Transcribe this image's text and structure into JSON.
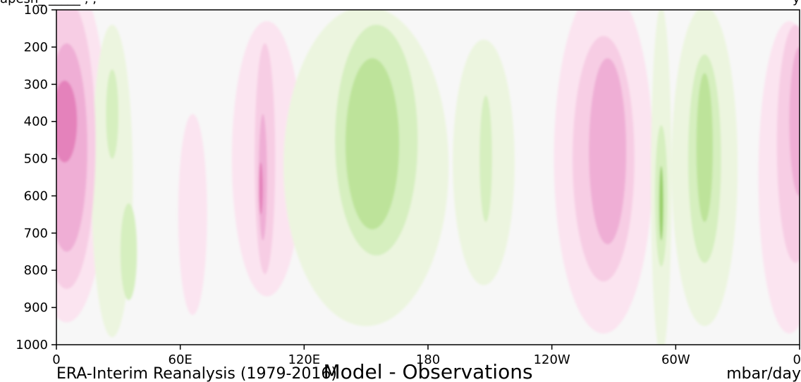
{
  "chart_data": {
    "type": "heatmap",
    "top_label_left": "apesh_   _____ ,   ,",
    "top_label_right": "y",
    "footer_left": "ERA-Interim Reanalysis (1979-2016)",
    "footer_center": "Model - Observations",
    "footer_right": "mbar/day",
    "y_ticks": [
      "100",
      "200",
      "300",
      "400",
      "500",
      "600",
      "700",
      "800",
      "900",
      "1000"
    ],
    "y_tick_values": [
      100,
      200,
      300,
      400,
      500,
      600,
      700,
      800,
      900,
      1000
    ],
    "ylim": [
      1000,
      100
    ],
    "x_ticks": [
      "0",
      "60E",
      "120E",
      "180",
      "120W",
      "60W",
      "0"
    ],
    "x_tick_values": [
      0,
      60,
      120,
      180,
      240,
      300,
      360
    ],
    "xlim": [
      0,
      360
    ],
    "colors": {
      "background": "#f7f7f7",
      "pink_levels": [
        "#fbe4f0",
        "#f7cde4",
        "#efaed5",
        "#e482bb",
        "#cf4c98"
      ],
      "green_levels": [
        "#ecf5df",
        "#d6efbf",
        "#bde39a",
        "#98cf68",
        "#68ad38"
      ]
    },
    "anomalies": [
      {
        "lon": 5,
        "lon_half_width": 20,
        "p_center": 470,
        "p_half_height": 470,
        "sign": 1,
        "level": 1
      },
      {
        "lon": 5,
        "lon_half_width": 14,
        "p_center": 460,
        "p_half_height": 390,
        "sign": 1,
        "level": 2
      },
      {
        "lon": 5,
        "lon_half_width": 10,
        "p_center": 470,
        "p_half_height": 280,
        "sign": 1,
        "level": 3
      },
      {
        "lon": 4,
        "lon_half_width": 6,
        "p_center": 400,
        "p_half_height": 110,
        "sign": 1,
        "level": 4
      },
      {
        "lon": 27,
        "lon_half_width": 10,
        "p_center": 560,
        "p_half_height": 420,
        "sign": -1,
        "level": 1
      },
      {
        "lon": 27,
        "lon_half_width": 3,
        "p_center": 380,
        "p_half_height": 120,
        "sign": -1,
        "level": 2
      },
      {
        "lon": 35,
        "lon_half_width": 4,
        "p_center": 750,
        "p_half_height": 130,
        "sign": -1,
        "level": 2
      },
      {
        "lon": 66,
        "lon_half_width": 7,
        "p_center": 650,
        "p_half_height": 270,
        "sign": 1,
        "level": 1
      },
      {
        "lon": 102,
        "lon_half_width": 17,
        "p_center": 500,
        "p_half_height": 370,
        "sign": 1,
        "level": 1
      },
      {
        "lon": 101,
        "lon_half_width": 5,
        "p_center": 500,
        "p_half_height": 310,
        "sign": 1,
        "level": 2
      },
      {
        "lon": 100,
        "lon_half_width": 2,
        "p_center": 550,
        "p_half_height": 170,
        "sign": 1,
        "level": 3
      },
      {
        "lon": 99,
        "lon_half_width": 1,
        "p_center": 580,
        "p_half_height": 70,
        "sign": 1,
        "level": 4
      },
      {
        "lon": 150,
        "lon_half_width": 40,
        "p_center": 520,
        "p_half_height": 430,
        "sign": -1,
        "level": 1
      },
      {
        "lon": 155,
        "lon_half_width": 20,
        "p_center": 450,
        "p_half_height": 310,
        "sign": -1,
        "level": 2
      },
      {
        "lon": 153,
        "lon_half_width": 13,
        "p_center": 460,
        "p_half_height": 230,
        "sign": -1,
        "level": 3
      },
      {
        "lon": 207,
        "lon_half_width": 15,
        "p_center": 510,
        "p_half_height": 330,
        "sign": -1,
        "level": 1
      },
      {
        "lon": 208,
        "lon_half_width": 3,
        "p_center": 500,
        "p_half_height": 170,
        "sign": -1,
        "level": 2
      },
      {
        "lon": 265,
        "lon_half_width": 24,
        "p_center": 500,
        "p_half_height": 470,
        "sign": 1,
        "level": 1
      },
      {
        "lon": 265,
        "lon_half_width": 15,
        "p_center": 500,
        "p_half_height": 330,
        "sign": 1,
        "level": 2
      },
      {
        "lon": 267,
        "lon_half_width": 9,
        "p_center": 480,
        "p_half_height": 250,
        "sign": 1,
        "level": 3
      },
      {
        "lon": 293,
        "lon_half_width": 5,
        "p_center": 560,
        "p_half_height": 470,
        "sign": -1,
        "level": 1
      },
      {
        "lon": 293,
        "lon_half_width": 3,
        "p_center": 600,
        "p_half_height": 190,
        "sign": -1,
        "level": 2
      },
      {
        "lon": 293,
        "lon_half_width": 1,
        "p_center": 620,
        "p_half_height": 100,
        "sign": -1,
        "level": 4
      },
      {
        "lon": 314,
        "lon_half_width": 16,
        "p_center": 520,
        "p_half_height": 430,
        "sign": -1,
        "level": 1
      },
      {
        "lon": 314,
        "lon_half_width": 8,
        "p_center": 500,
        "p_half_height": 280,
        "sign": -1,
        "level": 2
      },
      {
        "lon": 314,
        "lon_half_width": 4,
        "p_center": 470,
        "p_half_height": 200,
        "sign": -1,
        "level": 3
      },
      {
        "lon": 355,
        "lon_half_width": 15,
        "p_center": 550,
        "p_half_height": 420,
        "sign": 1,
        "level": 1
      },
      {
        "lon": 358,
        "lon_half_width": 9,
        "p_center": 460,
        "p_half_height": 320,
        "sign": 1,
        "level": 2
      },
      {
        "lon": 360,
        "lon_half_width": 5,
        "p_center": 400,
        "p_half_height": 200,
        "sign": 1,
        "level": 3
      }
    ]
  }
}
